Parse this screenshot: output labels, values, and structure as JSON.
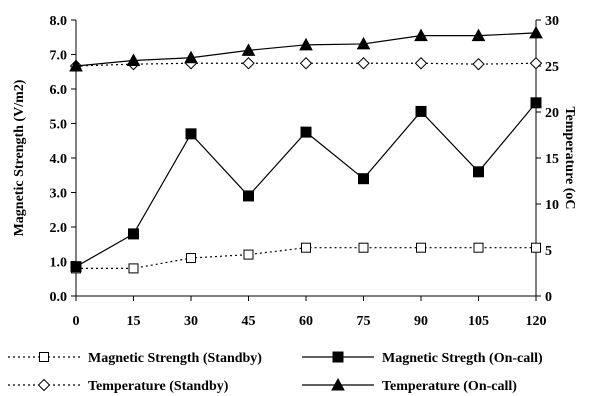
{
  "chart_data": {
    "type": "line",
    "x": [
      0,
      15,
      30,
      45,
      60,
      75,
      90,
      105,
      120
    ],
    "x_ticks": [
      "0",
      "15",
      "30",
      "45",
      "60",
      "75",
      "90",
      "105",
      "120"
    ],
    "y_left": {
      "label": "Magnetic Strength (V/m2)",
      "range": [
        0,
        8
      ],
      "ticks": [
        "0.0",
        "1.0",
        "2.0",
        "3.0",
        "4.0",
        "5.0",
        "6.0",
        "7.0",
        "8.0"
      ]
    },
    "y_right": {
      "label": "Temperature (oC",
      "range": [
        0,
        30
      ],
      "ticks": [
        "0",
        "5",
        "10",
        "15",
        "20",
        "25",
        "30"
      ]
    },
    "grid": false,
    "legend_position": "bottom",
    "series": [
      {
        "name": "Magnetic Strength (Standby)",
        "axis": "left",
        "line": "dotted",
        "marker": "open-square",
        "color": "#000000",
        "values": [
          0.8,
          0.8,
          1.1,
          1.2,
          1.4,
          1.4,
          1.4,
          1.4,
          1.4
        ]
      },
      {
        "name": "Magnetic Stregth (On-call)",
        "axis": "left",
        "line": "solid",
        "marker": "filled-square",
        "color": "#000000",
        "values": [
          0.85,
          1.8,
          4.7,
          2.9,
          4.75,
          3.4,
          5.35,
          3.6,
          5.6
        ]
      },
      {
        "name": "Temperature (Standby)",
        "axis": "right",
        "line": "dotted",
        "marker": "open-diamond",
        "color": "#000000",
        "values": [
          25.0,
          25.2,
          25.3,
          25.3,
          25.3,
          25.3,
          25.3,
          25.2,
          25.3
        ]
      },
      {
        "name": "Temperature (On-call)",
        "axis": "right",
        "line": "solid",
        "marker": "filled-triangle",
        "color": "#000000",
        "values": [
          25.0,
          25.6,
          25.9,
          26.7,
          27.3,
          27.4,
          28.3,
          28.3,
          28.6
        ]
      }
    ]
  }
}
